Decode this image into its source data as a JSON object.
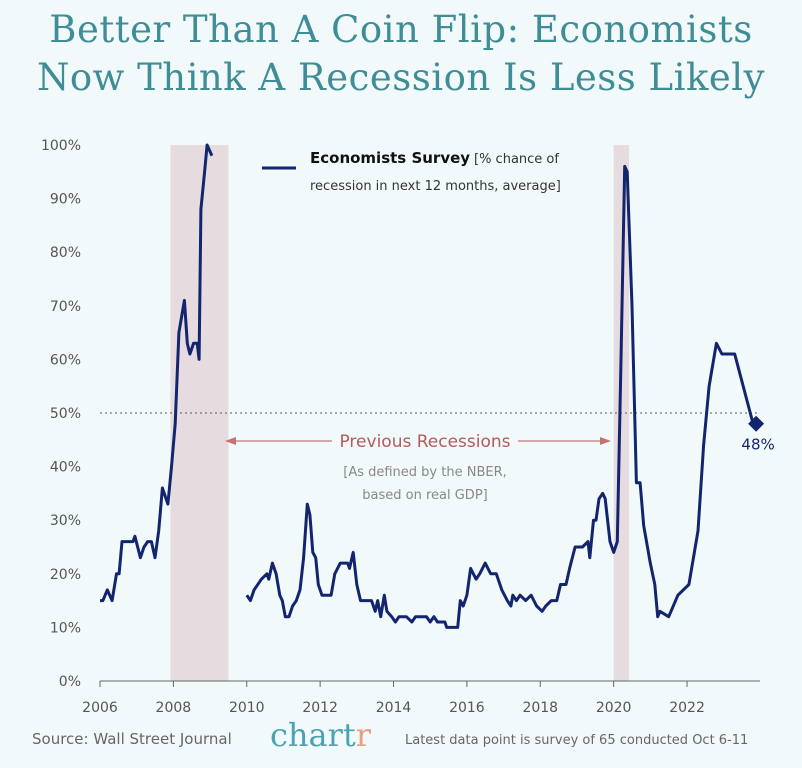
{
  "chart_data": {
    "type": "line",
    "title": [
      "Better Than A Coin Flip: Economists",
      "Now Think A Recession Is Less Likely"
    ],
    "ylim": [
      0,
      100
    ],
    "xlim": [
      2006,
      2024
    ],
    "y_ticks": [
      "0%",
      "10%",
      "20%",
      "30%",
      "40%",
      "50%",
      "60%",
      "70%",
      "80%",
      "90%",
      "100%"
    ],
    "x_ticks": [
      "2006",
      "2008",
      "2010",
      "2012",
      "2014",
      "2016",
      "2018",
      "2020",
      "2022"
    ],
    "grid": false,
    "legend": {
      "placement": "top-center",
      "name": "Economists Survey",
      "desc_line1": "[% chance of",
      "desc_line2": "recession in next 12 months, average]"
    },
    "reference_line": {
      "value": 50,
      "style": "dotted"
    },
    "recessions": [
      [
        2007.92,
        2009.5
      ],
      [
        2020.0,
        2020.42
      ]
    ],
    "recession_label": "Previous Recessions",
    "recession_note_1": "[As defined by the NBER,",
    "recession_note_2": "based on real GDP]",
    "last_point_label": "48%",
    "colors": {
      "line": "#13256e",
      "recession": "#e6dcdf",
      "title": "#3f8d96",
      "annotation": "#b45a5a",
      "background": "#f2f9fb"
    },
    "series": [
      {
        "name": "Economists Survey",
        "segments": [
          [
            [
              2006.0,
              15
            ],
            [
              2006.08,
              15
            ],
            [
              2006.2,
              17
            ],
            [
              2006.33,
              15
            ],
            [
              2006.45,
              20
            ],
            [
              2006.52,
              20
            ],
            [
              2006.6,
              26
            ],
            [
              2006.9,
              26
            ],
            [
              2006.95,
              27
            ],
            [
              2007.1,
              23
            ],
            [
              2007.2,
              25
            ],
            [
              2007.3,
              26
            ],
            [
              2007.4,
              26
            ],
            [
              2007.5,
              23
            ],
            [
              2007.6,
              28
            ],
            [
              2007.7,
              36
            ],
            [
              2007.85,
              33
            ],
            [
              2007.95,
              40
            ],
            [
              2008.05,
              48
            ],
            [
              2008.15,
              65
            ],
            [
              2008.3,
              71
            ],
            [
              2008.38,
              63
            ],
            [
              2008.45,
              61
            ],
            [
              2008.55,
              63
            ],
            [
              2008.65,
              63
            ],
            [
              2008.7,
              60
            ],
            [
              2008.75,
              88
            ],
            [
              2008.85,
              95
            ],
            [
              2008.92,
              100
            ],
            [
              2009.05,
              98
            ]
          ],
          [
            [
              2010.0,
              16
            ],
            [
              2010.1,
              15
            ],
            [
              2010.2,
              17
            ],
            [
              2010.4,
              19
            ],
            [
              2010.55,
              20
            ],
            [
              2010.6,
              19
            ],
            [
              2010.7,
              22
            ],
            [
              2010.8,
              20
            ],
            [
              2010.9,
              16
            ],
            [
              2010.97,
              15
            ],
            [
              2011.05,
              12
            ],
            [
              2011.15,
              12
            ],
            [
              2011.25,
              14
            ],
            [
              2011.35,
              15
            ],
            [
              2011.45,
              17
            ],
            [
              2011.55,
              23
            ],
            [
              2011.65,
              33
            ],
            [
              2011.72,
              31
            ],
            [
              2011.8,
              24
            ],
            [
              2011.88,
              23
            ],
            [
              2011.95,
              18
            ],
            [
              2012.05,
              16
            ],
            [
              2012.3,
              16
            ],
            [
              2012.4,
              20
            ],
            [
              2012.55,
              22
            ],
            [
              2012.75,
              22
            ],
            [
              2012.8,
              21
            ],
            [
              2012.9,
              24
            ],
            [
              2013.0,
              18
            ],
            [
              2013.1,
              15
            ],
            [
              2013.4,
              15
            ],
            [
              2013.5,
              13
            ],
            [
              2013.57,
              15
            ],
            [
              2013.65,
              12
            ],
            [
              2013.75,
              16
            ],
            [
              2013.82,
              13
            ],
            [
              2013.95,
              12
            ],
            [
              2014.05,
              11
            ],
            [
              2014.15,
              12
            ],
            [
              2014.35,
              12
            ],
            [
              2014.5,
              11
            ],
            [
              2014.6,
              12
            ],
            [
              2014.9,
              12
            ],
            [
              2015.0,
              11
            ],
            [
              2015.1,
              12
            ],
            [
              2015.2,
              11
            ],
            [
              2015.4,
              11
            ],
            [
              2015.45,
              10
            ],
            [
              2015.75,
              10
            ],
            [
              2015.82,
              15
            ],
            [
              2015.9,
              14
            ],
            [
              2016.0,
              16
            ],
            [
              2016.1,
              21
            ],
            [
              2016.25,
              19
            ],
            [
              2016.35,
              20
            ],
            [
              2016.5,
              22
            ],
            [
              2016.65,
              20
            ],
            [
              2016.8,
              20
            ],
            [
              2016.95,
              17
            ],
            [
              2017.1,
              15
            ],
            [
              2017.2,
              14
            ],
            [
              2017.25,
              16
            ],
            [
              2017.35,
              15
            ],
            [
              2017.45,
              16
            ],
            [
              2017.6,
              15
            ],
            [
              2017.75,
              16
            ],
            [
              2017.9,
              14
            ],
            [
              2018.05,
              13
            ],
            [
              2018.15,
              14
            ],
            [
              2018.3,
              15
            ],
            [
              2018.45,
              15
            ],
            [
              2018.55,
              18
            ],
            [
              2018.7,
              18
            ],
            [
              2018.8,
              21
            ],
            [
              2018.95,
              25
            ],
            [
              2019.15,
              25
            ],
            [
              2019.3,
              26
            ],
            [
              2019.35,
              23
            ],
            [
              2019.45,
              30
            ],
            [
              2019.52,
              30
            ],
            [
              2019.6,
              34
            ],
            [
              2019.7,
              35
            ],
            [
              2019.77,
              34
            ],
            [
              2019.9,
              26
            ],
            [
              2020.0,
              24
            ],
            [
              2020.1,
              26
            ],
            [
              2020.2,
              60
            ],
            [
              2020.3,
              96
            ],
            [
              2020.37,
              95
            ],
            [
              2020.5,
              70
            ],
            [
              2020.62,
              37
            ],
            [
              2020.72,
              37
            ],
            [
              2020.82,
              29
            ],
            [
              2021.0,
              22
            ],
            [
              2021.12,
              18
            ],
            [
              2021.2,
              12
            ],
            [
              2021.26,
              13
            ],
            [
              2021.5,
              12
            ],
            [
              2021.75,
              16
            ],
            [
              2022.05,
              18
            ],
            [
              2022.3,
              28
            ],
            [
              2022.45,
              44
            ],
            [
              2022.6,
              55
            ],
            [
              2022.8,
              63
            ],
            [
              2022.95,
              61
            ],
            [
              2023.3,
              61
            ],
            [
              2023.8,
              48
            ]
          ]
        ]
      }
    ]
  },
  "footer": {
    "source": "Source: Wall Street Journal",
    "logo_main": "chart",
    "logo_end": "r",
    "note": "Latest data point is survey of 65 conducted Oct 6-11"
  }
}
